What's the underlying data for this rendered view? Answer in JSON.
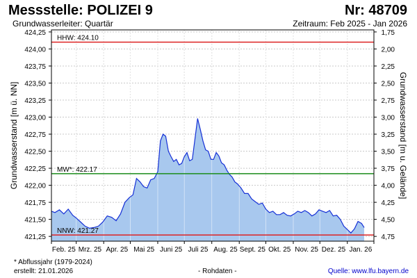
{
  "header": {
    "title": "Messstelle: POLIZEI 9",
    "number": "Nr: 48709",
    "aquifer": "Grundwasserleiter: Quartär",
    "period": "Zeitraum: Feb 2025 - Jan 2026"
  },
  "footer": {
    "footnote": "* Abflussjahr (1979-2024)",
    "created": "erstellt:  21.01.2026",
    "raw": "- Rohdaten -",
    "source": "Quelle: www.lfu.bayern.de"
  },
  "colors": {
    "line": "#1530d6",
    "fill": "#a8c8ee",
    "hhw": "#dd2222",
    "nnw": "#dd2222",
    "mw": "#1a8c1a",
    "grid": "#c8c8c8"
  },
  "chart_data": {
    "type": "area",
    "ylabel_left": "Grundwasserstand [m ü. NN]",
    "ylabel_right": "Grundwasserstand [m u. Gelände]",
    "ylim": [
      421.18,
      424.28
    ],
    "yticks_left": [
      "424,25",
      "424,00",
      "423,75",
      "423,50",
      "423,25",
      "423,00",
      "422,75",
      "422,50",
      "422,25",
      "422,00",
      "421,75",
      "421,50",
      "421,25"
    ],
    "yticks_right": [
      "1,75",
      "2,00",
      "2,25",
      "2,50",
      "2,75",
      "3,00",
      "3,25",
      "3,50",
      "3,75",
      "4,00",
      "4,25",
      "4,50",
      "4,75"
    ],
    "xlabels": [
      "Feb. 25",
      "Mrz. 25",
      "Apr. 25",
      "Mai 25",
      "Juni 25",
      "Juli 25",
      "Aug. 25",
      "Sept. 25",
      "Okt. 25",
      "Nov. 25",
      "Dez. 25",
      "Jan. 26"
    ],
    "grid": true,
    "reference_lines": [
      {
        "label": "HHW: 424.10",
        "value": 424.1
      },
      {
        "label": "MW*: 422.17",
        "value": 422.17
      },
      {
        "label": "NNW: 421.27",
        "value": 421.27
      }
    ],
    "series": [
      {
        "x": [
          "2025-02-01",
          "2025-02-05",
          "2025-02-10",
          "2025-02-15",
          "2025-02-20",
          "2025-02-25",
          "2025-03-01",
          "2025-03-06",
          "2025-03-11",
          "2025-03-16",
          "2025-03-21",
          "2025-03-26",
          "2025-03-31",
          "2025-04-05",
          "2025-04-10",
          "2025-04-15",
          "2025-04-20",
          "2025-04-25",
          "2025-04-30",
          "2025-05-04",
          "2025-05-08",
          "2025-05-12",
          "2025-05-16",
          "2025-05-20",
          "2025-05-24",
          "2025-05-28",
          "2025-06-01",
          "2025-06-04",
          "2025-06-07",
          "2025-06-10",
          "2025-06-13",
          "2025-06-16",
          "2025-06-19",
          "2025-06-22",
          "2025-06-25",
          "2025-06-28",
          "2025-07-01",
          "2025-07-04",
          "2025-07-07",
          "2025-07-10",
          "2025-07-13",
          "2025-07-16",
          "2025-07-19",
          "2025-07-22",
          "2025-07-25",
          "2025-07-28",
          "2025-07-31",
          "2025-08-03",
          "2025-08-06",
          "2025-08-09",
          "2025-08-12",
          "2025-08-15",
          "2025-08-18",
          "2025-08-21",
          "2025-08-24",
          "2025-08-27",
          "2025-08-30",
          "2025-09-03",
          "2025-09-07",
          "2025-09-11",
          "2025-09-15",
          "2025-09-19",
          "2025-09-23",
          "2025-09-27",
          "2025-10-01",
          "2025-10-05",
          "2025-10-09",
          "2025-10-13",
          "2025-10-17",
          "2025-10-21",
          "2025-10-25",
          "2025-10-29",
          "2025-11-02",
          "2025-11-06",
          "2025-11-10",
          "2025-11-14",
          "2025-11-18",
          "2025-11-22",
          "2025-11-26",
          "2025-11-30",
          "2025-12-04",
          "2025-12-08",
          "2025-12-12",
          "2025-12-16",
          "2025-12-20",
          "2025-12-24",
          "2025-12-28",
          "2026-01-01",
          "2026-01-05",
          "2026-01-09",
          "2026-01-13",
          "2026-01-17",
          "2026-01-20"
        ],
        "values": [
          421.62,
          421.6,
          421.64,
          421.58,
          421.65,
          421.56,
          421.52,
          421.46,
          421.4,
          421.37,
          421.38,
          421.4,
          421.46,
          421.55,
          421.53,
          421.48,
          421.58,
          421.75,
          421.82,
          421.86,
          422.1,
          422.05,
          421.98,
          421.96,
          422.08,
          422.1,
          422.2,
          422.65,
          422.75,
          422.72,
          422.5,
          422.42,
          422.35,
          422.38,
          422.3,
          422.32,
          422.42,
          422.48,
          422.36,
          422.38,
          422.68,
          422.98,
          422.82,
          422.65,
          422.52,
          422.5,
          422.38,
          422.38,
          422.48,
          422.43,
          422.33,
          422.3,
          422.22,
          422.16,
          422.12,
          422.05,
          422.02,
          421.96,
          421.88,
          421.88,
          421.8,
          421.76,
          421.72,
          421.74,
          421.65,
          421.6,
          421.62,
          421.57,
          421.57,
          421.6,
          421.56,
          421.55,
          421.58,
          421.62,
          421.6,
          421.63,
          421.6,
          421.55,
          421.58,
          421.64,
          421.62,
          421.6,
          421.63,
          421.55,
          421.56,
          421.5,
          421.4,
          421.35,
          421.3,
          421.36,
          421.47,
          421.44,
          421.38
        ]
      }
    ]
  }
}
